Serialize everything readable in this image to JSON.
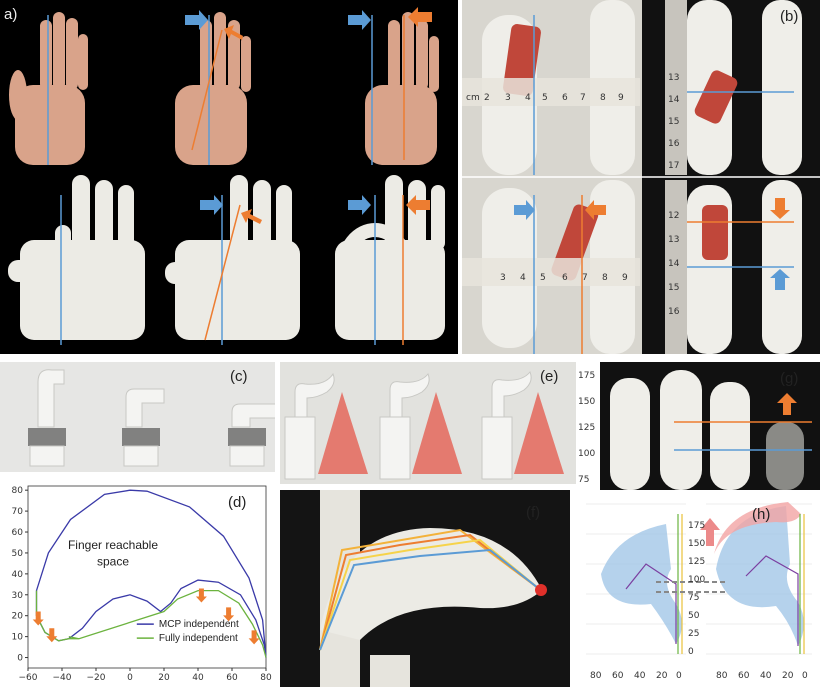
{
  "panels": {
    "a": "a)",
    "b": "(b)",
    "c": "(c)",
    "d": "(d)",
    "e": "(e)",
    "f": "(f)",
    "g": "(g)",
    "h": "(h)"
  },
  "colors": {
    "blue_line": "#5b9bd5",
    "orange_line": "#ed7d31",
    "mcp_curve": "#3a3aa8",
    "fully_curve": "#6cb33f",
    "cone": "#e47a6f",
    "workspace_blue": "#9cc3e6",
    "workspace_red": "#f2a4a4"
  },
  "ruler_top": [
    "cm",
    "2",
    "3",
    "4",
    "5",
    "6",
    "7",
    "8",
    "9"
  ],
  "ruler_bottom": [
    "3",
    "4",
    "5",
    "6",
    "7",
    "8",
    "9"
  ],
  "ruler_vertical_top": [
    "13",
    "14",
    "15",
    "16",
    "17"
  ],
  "ruler_vertical_bottom": [
    "12",
    "13",
    "14",
    "15",
    "16"
  ],
  "g_axis": [
    "175",
    "150",
    "125",
    "100",
    "75"
  ],
  "chart_data": {
    "type": "line",
    "annotation": "Finger reachable space",
    "legend": [
      "MCP independent",
      "Fully independent"
    ],
    "legend_position": "bottom-right",
    "xlim": [
      -60,
      80
    ],
    "ylim": [
      -5,
      82
    ],
    "x_ticks": [
      "−60",
      "−40",
      "−20",
      "0",
      "20",
      "40",
      "60",
      "80"
    ],
    "y_ticks": [
      "0",
      "10",
      "20",
      "30",
      "40",
      "50",
      "60",
      "70",
      "80"
    ],
    "series": [
      {
        "name": "MCP independent",
        "points": [
          [
            80,
            0
          ],
          [
            78,
            18
          ],
          [
            70,
            38
          ],
          [
            55,
            58
          ],
          [
            35,
            72
          ],
          [
            10,
            79.5
          ],
          [
            0,
            80
          ],
          [
            -15,
            78
          ],
          [
            -35,
            66
          ],
          [
            -48,
            50
          ],
          [
            -55,
            32
          ],
          [
            -55,
            20
          ],
          [
            -50,
            12
          ],
          [
            -42,
            8
          ],
          [
            -36,
            9
          ],
          [
            -28,
            14
          ],
          [
            -20,
            22
          ],
          [
            -10,
            28
          ],
          [
            0,
            30
          ],
          [
            10,
            27
          ],
          [
            18,
            22
          ],
          [
            24,
            26
          ],
          [
            30,
            33
          ],
          [
            40,
            37
          ],
          [
            52,
            36
          ],
          [
            65,
            30
          ],
          [
            74,
            18
          ],
          [
            79,
            6
          ],
          [
            80,
            0
          ]
        ]
      },
      {
        "name": "Fully independent",
        "points": [
          [
            -55,
            32
          ],
          [
            -55,
            20
          ],
          [
            -50,
            12
          ],
          [
            -42,
            8
          ],
          [
            -36,
            9
          ],
          [
            -30,
            9
          ],
          [
            -36,
            10
          ],
          [
            -30,
            9
          ],
          [
            20,
            22
          ],
          [
            28,
            28
          ],
          [
            40,
            32
          ],
          [
            52,
            32
          ],
          [
            64,
            26
          ],
          [
            72,
            16
          ],
          [
            78,
            6
          ],
          [
            80,
            0
          ]
        ]
      }
    ],
    "arrows_x": [
      -54,
      -46,
      42,
      58,
      73
    ]
  },
  "h_axis": {
    "z_ticks": [
      "0",
      "25",
      "50",
      "75",
      "100",
      "125",
      "150",
      "175"
    ],
    "x_ticks": [
      "80",
      "60",
      "40",
      "20",
      "0"
    ]
  }
}
